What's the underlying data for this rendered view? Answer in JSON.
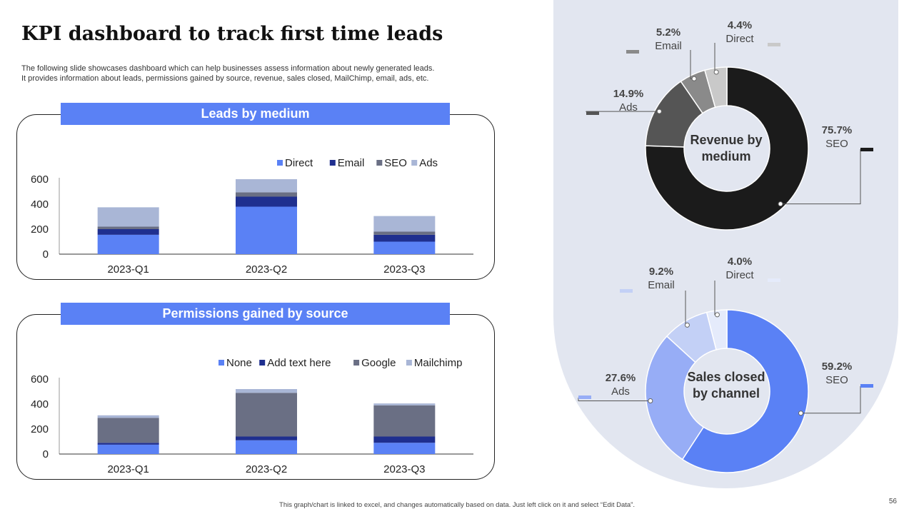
{
  "title": "KPI dashboard to track first time leads",
  "subtitle": [
    "The following slide showcases dashboard which can help businesses assess information about newly generated leads.",
    "It provides information about leads, permissions gained by source, revenue, sales closed, MailChimp, email, ads, etc."
  ],
  "footer": "This graph/chart is linked to excel, and changes automatically based on data. Just left click on it and select “Edit Data”.",
  "page_number": "56",
  "chart_data": [
    {
      "id": "leads",
      "type": "bar",
      "stacked": true,
      "title": "Leads by medium",
      "categories": [
        "2023-Q1",
        "2023-Q2",
        "2023-Q3"
      ],
      "series": [
        {
          "name": "Direct",
          "color": "#5a81f5",
          "values": [
            155,
            380,
            100
          ]
        },
        {
          "name": "Email",
          "color": "#1f2f8f",
          "values": [
            45,
            80,
            55
          ]
        },
        {
          "name": "SEO",
          "color": "#6a6f84",
          "values": [
            20,
            35,
            25
          ]
        },
        {
          "name": "Ads",
          "color": "#a9b6d6",
          "values": [
            155,
            105,
            125
          ]
        }
      ],
      "ylim": [
        0,
        600
      ],
      "yticks": [
        "0",
        "200",
        "400",
        "600"
      ],
      "legend": "top-right"
    },
    {
      "id": "permissions",
      "type": "bar",
      "stacked": true,
      "title": "Permissions gained by source",
      "categories": [
        "2023-Q1",
        "2023-Q2",
        "2023-Q3"
      ],
      "series": [
        {
          "name": "None",
          "color": "#5a81f5",
          "values": [
            75,
            110,
            90
          ]
        },
        {
          "name": "Add text here",
          "color": "#1f2f8f",
          "values": [
            15,
            30,
            50
          ]
        },
        {
          "name": "Google",
          "color": "#6a6f84",
          "values": [
            200,
            350,
            250
          ]
        },
        {
          "name": "Mailchimp",
          "color": "#a9b6d6",
          "values": [
            20,
            30,
            15
          ]
        }
      ],
      "ylim": [
        0,
        600
      ],
      "yticks": [
        "0",
        "200",
        "400",
        "600"
      ],
      "legend": "top-right"
    },
    {
      "id": "revenue",
      "type": "pie",
      "donut": true,
      "title_lines": [
        "Revenue by",
        "medium"
      ],
      "slices": [
        {
          "name": "SEO",
          "value": 75.7,
          "label": "75.7%",
          "color": "#1b1b1b"
        },
        {
          "name": "Ads",
          "value": 14.9,
          "label": "14.9%",
          "color": "#555555"
        },
        {
          "name": "Email",
          "value": 5.2,
          "label": "5.2%",
          "color": "#8a8a8a"
        },
        {
          "name": "Direct",
          "value": 4.4,
          "label": "4.4%",
          "color": "#c9c9c9"
        }
      ]
    },
    {
      "id": "sales",
      "type": "pie",
      "donut": true,
      "title_lines": [
        "Sales closed",
        "by channel"
      ],
      "slices": [
        {
          "name": "SEO",
          "value": 59.2,
          "label": "59.2%",
          "color": "#5a81f5"
        },
        {
          "name": "Ads",
          "value": 27.6,
          "label": "27.6%",
          "color": "#97adf6"
        },
        {
          "name": "Email",
          "value": 9.2,
          "label": "9.2%",
          "color": "#c3d0f6"
        },
        {
          "name": "Direct",
          "value": 4.0,
          "label": "4.0%",
          "color": "#e5ebfb"
        }
      ]
    }
  ]
}
